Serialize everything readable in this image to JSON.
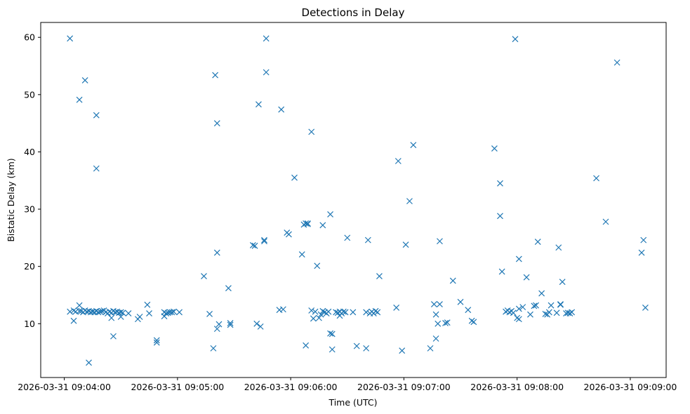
{
  "chart_data": {
    "type": "scatter",
    "title": "Detections in Delay",
    "xlabel": "Time (UTC)",
    "ylabel": "Bistatic Delay (km)",
    "marker": "x",
    "color": "#1f77b4",
    "x_unit": "seconds after 2026-03-31 09:04:00",
    "xlim": [
      -12.5,
      319
    ],
    "ylim": [
      0.6,
      62.6
    ],
    "x_ticks": [
      {
        "value": 0,
        "label": "2026-03-31 09:04:00"
      },
      {
        "value": 60,
        "label": "2026-03-31 09:05:00"
      },
      {
        "value": 120,
        "label": "2026-03-31 09:06:00"
      },
      {
        "value": 180,
        "label": "2026-03-31 09:07:00"
      },
      {
        "value": 240,
        "label": "2026-03-31 09:08:00"
      },
      {
        "value": 300,
        "label": "2026-03-31 09:09:00"
      }
    ],
    "y_ticks": [
      {
        "value": 10,
        "label": "10"
      },
      {
        "value": 20,
        "label": "20"
      },
      {
        "value": 30,
        "label": "30"
      },
      {
        "value": 40,
        "label": "40"
      },
      {
        "value": 50,
        "label": "50"
      },
      {
        "value": 60,
        "label": "60"
      }
    ],
    "points": [
      [
        3,
        59.8
      ],
      [
        3,
        12.1
      ],
      [
        5,
        12.3
      ],
      [
        5,
        10.5
      ],
      [
        6,
        12.1
      ],
      [
        8,
        12.2
      ],
      [
        8,
        13.2
      ],
      [
        8,
        49.1
      ],
      [
        9,
        12.2
      ],
      [
        10,
        12.0
      ],
      [
        11,
        12.3
      ],
      [
        11,
        52.5
      ],
      [
        12,
        12.1
      ],
      [
        13,
        12.2
      ],
      [
        13,
        3.2
      ],
      [
        14,
        12.0
      ],
      [
        15,
        12.1
      ],
      [
        16,
        12.0
      ],
      [
        17,
        12.2
      ],
      [
        17,
        46.4
      ],
      [
        17,
        37.1
      ],
      [
        18,
        12.0
      ],
      [
        19,
        12.1
      ],
      [
        20,
        12.2
      ],
      [
        21,
        12.3
      ],
      [
        22,
        12.0
      ],
      [
        23,
        11.8
      ],
      [
        24,
        12.1
      ],
      [
        25,
        11.9
      ],
      [
        25,
        11.0
      ],
      [
        26,
        12.2
      ],
      [
        26,
        7.8
      ],
      [
        27,
        12.0
      ],
      [
        28,
        12.1
      ],
      [
        29,
        11.9
      ],
      [
        30,
        12.0
      ],
      [
        30,
        11.2
      ],
      [
        31,
        11.9
      ],
      [
        34,
        11.8
      ],
      [
        39,
        10.8
      ],
      [
        40,
        11.2
      ],
      [
        44,
        13.3
      ],
      [
        45,
        11.8
      ],
      [
        49,
        7.1
      ],
      [
        49,
        6.7
      ],
      [
        53,
        12.0
      ],
      [
        53,
        11.3
      ],
      [
        54,
        11.8
      ],
      [
        55,
        11.9
      ],
      [
        56,
        12.0
      ],
      [
        57,
        12.0
      ],
      [
        58,
        12.1
      ],
      [
        61,
        12.0
      ],
      [
        74,
        18.3
      ],
      [
        77,
        11.7
      ],
      [
        79,
        5.7
      ],
      [
        80,
        53.4
      ],
      [
        81,
        45.0
      ],
      [
        81,
        22.4
      ],
      [
        81,
        9.1
      ],
      [
        82,
        9.9
      ],
      [
        87,
        16.2
      ],
      [
        88,
        9.8
      ],
      [
        88,
        10.1
      ],
      [
        100,
        23.7
      ],
      [
        101,
        23.6
      ],
      [
        102,
        10.0
      ],
      [
        103,
        48.3
      ],
      [
        104,
        9.5
      ],
      [
        106,
        24.4
      ],
      [
        106,
        24.6
      ],
      [
        107,
        53.9
      ],
      [
        107,
        59.8
      ],
      [
        114,
        12.4
      ],
      [
        115,
        47.4
      ],
      [
        116,
        12.5
      ],
      [
        118,
        25.9
      ],
      [
        119,
        25.6
      ],
      [
        122,
        35.5
      ],
      [
        126,
        22.1
      ],
      [
        127,
        27.3
      ],
      [
        128,
        27.5
      ],
      [
        128,
        6.2
      ],
      [
        129,
        27.4
      ],
      [
        129,
        27.5
      ],
      [
        131,
        43.5
      ],
      [
        131,
        12.3
      ],
      [
        132,
        10.9
      ],
      [
        133,
        12.1
      ],
      [
        134,
        20.1
      ],
      [
        135,
        11.0
      ],
      [
        136,
        11.6
      ],
      [
        137,
        27.2
      ],
      [
        137,
        12.2
      ],
      [
        138,
        12.0
      ],
      [
        139,
        11.8
      ],
      [
        140,
        12.1
      ],
      [
        141,
        29.1
      ],
      [
        141,
        8.3
      ],
      [
        142,
        8.2
      ],
      [
        142,
        5.5
      ],
      [
        144,
        12.0
      ],
      [
        145,
        11.9
      ],
      [
        146,
        11.4
      ],
      [
        146,
        12.1
      ],
      [
        147,
        11.8
      ],
      [
        148,
        12.1
      ],
      [
        149,
        12.0
      ],
      [
        150,
        25.0
      ],
      [
        153,
        12.0
      ],
      [
        155,
        6.1
      ],
      [
        160,
        12.0
      ],
      [
        160,
        5.7
      ],
      [
        161,
        24.6
      ],
      [
        162,
        11.8
      ],
      [
        163,
        12.1
      ],
      [
        164,
        11.8
      ],
      [
        165,
        12.2
      ],
      [
        166,
        12.0
      ],
      [
        167,
        18.3
      ],
      [
        176,
        12.8
      ],
      [
        177,
        38.4
      ],
      [
        179,
        5.3
      ],
      [
        181,
        23.8
      ],
      [
        183,
        31.4
      ],
      [
        185,
        41.2
      ],
      [
        194,
        5.7
      ],
      [
        196,
        13.4
      ],
      [
        197,
        11.6
      ],
      [
        197,
        7.4
      ],
      [
        198,
        10.0
      ],
      [
        199,
        24.4
      ],
      [
        199,
        13.4
      ],
      [
        202,
        10.1
      ],
      [
        203,
        10.2
      ],
      [
        206,
        17.5
      ],
      [
        210,
        13.8
      ],
      [
        214,
        12.4
      ],
      [
        216,
        10.5
      ],
      [
        217,
        10.3
      ],
      [
        228,
        40.6
      ],
      [
        231,
        34.5
      ],
      [
        231,
        28.8
      ],
      [
        232,
        19.1
      ],
      [
        234,
        12.1
      ],
      [
        235,
        12.3
      ],
      [
        236,
        12.0
      ],
      [
        237,
        12.2
      ],
      [
        238,
        11.9
      ],
      [
        239,
        59.7
      ],
      [
        240,
        11.0
      ],
      [
        241,
        10.8
      ],
      [
        241,
        12.6
      ],
      [
        241,
        21.3
      ],
      [
        243,
        12.9
      ],
      [
        245,
        18.1
      ],
      [
        247,
        11.6
      ],
      [
        249,
        13.1
      ],
      [
        250,
        13.2
      ],
      [
        251,
        24.3
      ],
      [
        253,
        15.3
      ],
      [
        255,
        11.7
      ],
      [
        256,
        11.6
      ],
      [
        257,
        12.0
      ],
      [
        258,
        13.2
      ],
      [
        261,
        11.9
      ],
      [
        262,
        23.3
      ],
      [
        263,
        13.4
      ],
      [
        263,
        13.3
      ],
      [
        264,
        17.3
      ],
      [
        266,
        11.8
      ],
      [
        267,
        11.9
      ],
      [
        268,
        11.8
      ],
      [
        269,
        12.0
      ],
      [
        282,
        35.4
      ],
      [
        287,
        27.8
      ],
      [
        293,
        55.6
      ],
      [
        306,
        22.4
      ],
      [
        307,
        24.6
      ],
      [
        308,
        12.8
      ]
    ]
  }
}
